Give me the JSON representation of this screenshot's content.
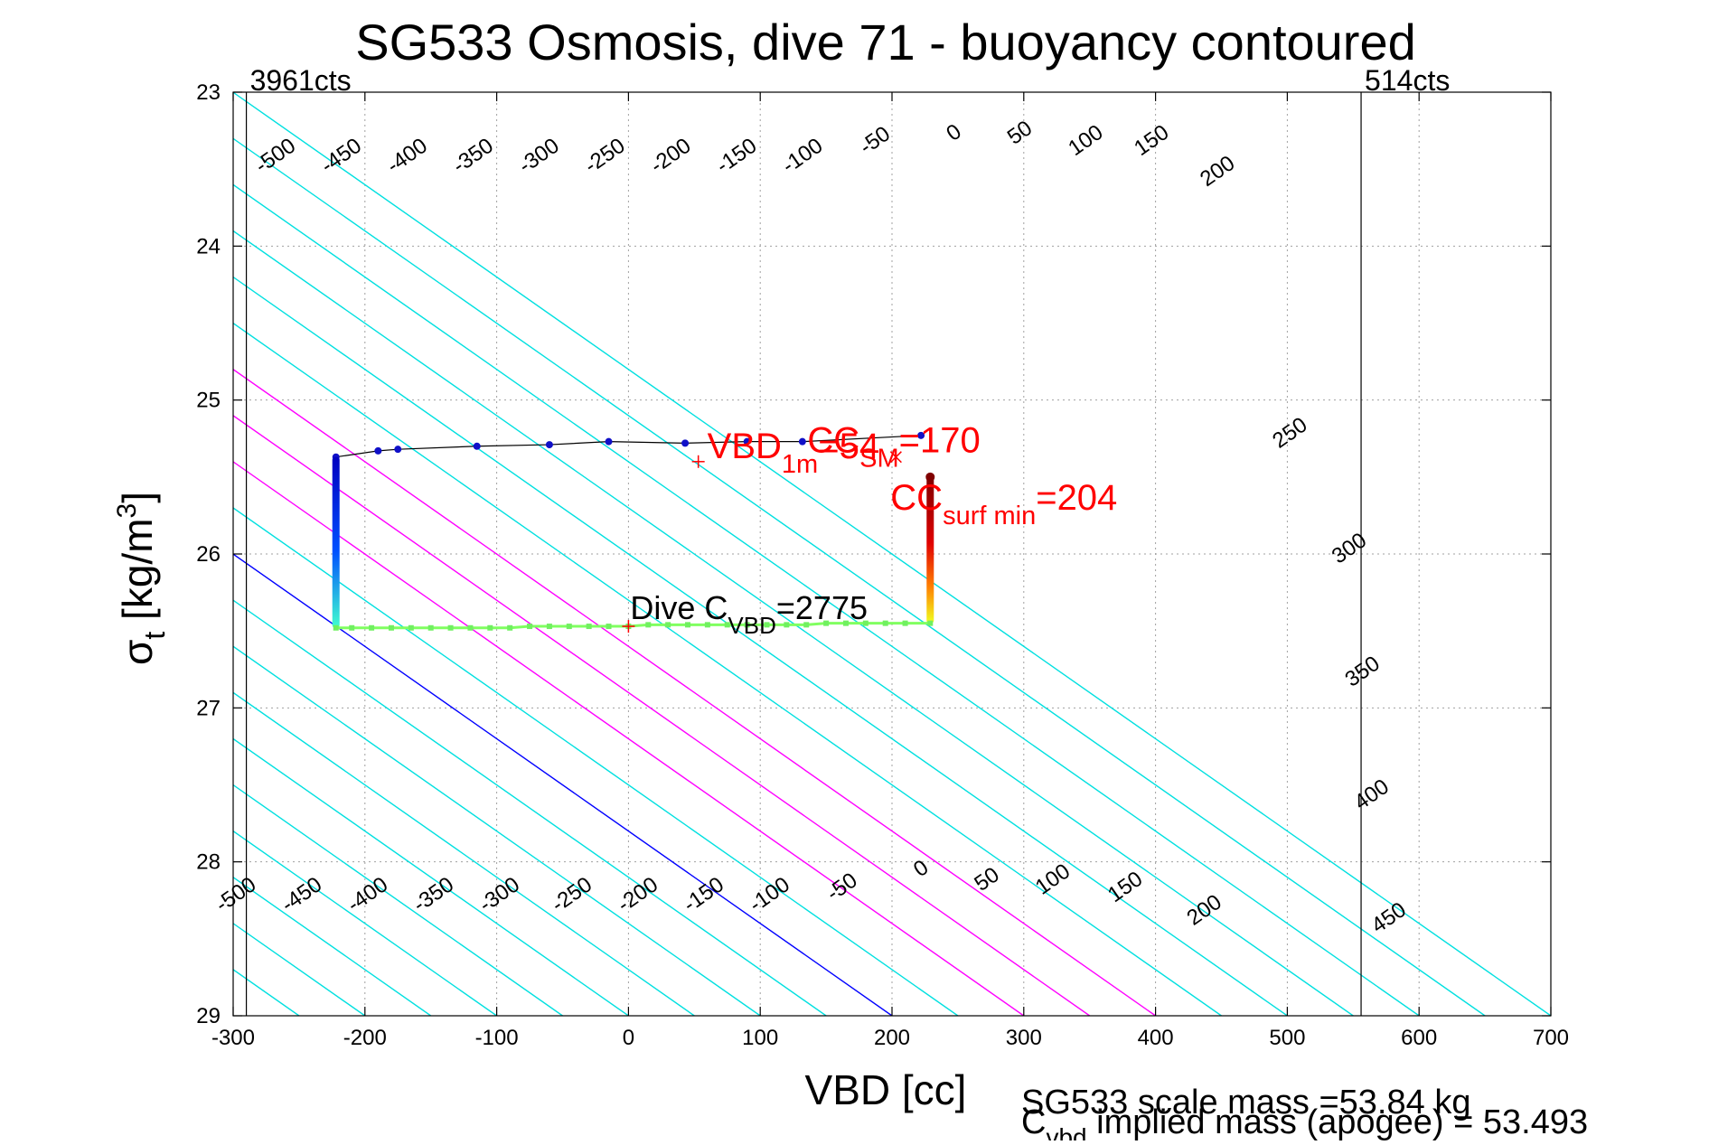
{
  "chart_data": {
    "type": "line",
    "title": "SG533 Osmosis, dive 71 - buoyancy contoured",
    "xlabel": "VBD [cc]",
    "ylabel_main": "σ",
    "ylabel_sub": "t",
    "ylabel_unit": "[kg/m",
    "ylabel_unit_sup": "3",
    "ylabel_unit_end": "]",
    "xlim": [
      -300,
      700
    ],
    "ylim": [
      23,
      29
    ],
    "y_reversed": true,
    "grid": true,
    "x_ticks": [
      -300,
      -200,
      -100,
      0,
      100,
      200,
      300,
      400,
      500,
      600,
      700
    ],
    "y_ticks": [
      23,
      24,
      25,
      26,
      27,
      28,
      29
    ],
    "x_tick_labels": [
      "-300",
      "-200",
      "-100",
      "0",
      "100",
      "200",
      "300",
      "400",
      "500",
      "600",
      "700"
    ],
    "y_tick_labels": [
      "23",
      "24",
      "25",
      "26",
      "27",
      "28",
      "29"
    ],
    "colors": {
      "contour": "#00e0e0",
      "zero_contour": "#0000ff",
      "high_contour": "#ff00ff",
      "annotation": "#ff0000",
      "grid": "#a0a0a0",
      "trace": "#000000"
    },
    "contours": {
      "slope_cc_per_sigma": 166.7,
      "levels": [
        -550,
        -500,
        -450,
        -400,
        -350,
        -300,
        -250,
        -200,
        -150,
        -100,
        -50,
        0,
        50,
        100,
        150,
        200,
        250,
        300,
        350,
        400,
        450,
        500
      ],
      "zero_levels": [
        0
      ],
      "high_levels": [
        100,
        150,
        200
      ],
      "level_labels_top": [
        {
          "text": "-500",
          "x": -265,
          "y": 23.45
        },
        {
          "text": "-450",
          "x": -215,
          "y": 23.45
        },
        {
          "text": "-400",
          "x": -165,
          "y": 23.45
        },
        {
          "text": "-350",
          "x": -115,
          "y": 23.45
        },
        {
          "text": "-300",
          "x": -65,
          "y": 23.45
        },
        {
          "text": "-250",
          "x": -15,
          "y": 23.45
        },
        {
          "text": "-200",
          "x": 35,
          "y": 23.45
        },
        {
          "text": "-150",
          "x": 85,
          "y": 23.45
        },
        {
          "text": "-100",
          "x": 135,
          "y": 23.45
        },
        {
          "text": "-50",
          "x": 190,
          "y": 23.35
        },
        {
          "text": "0",
          "x": 250,
          "y": 23.3
        },
        {
          "text": "50",
          "x": 300,
          "y": 23.3
        },
        {
          "text": "100",
          "x": 350,
          "y": 23.35
        },
        {
          "text": "150",
          "x": 400,
          "y": 23.35
        },
        {
          "text": "200",
          "x": 450,
          "y": 23.55
        },
        {
          "text": "250",
          "x": 505,
          "y": 25.25
        },
        {
          "text": "300",
          "x": 550,
          "y": 26.0
        },
        {
          "text": "350",
          "x": 560,
          "y": 26.8
        },
        {
          "text": "400",
          "x": 567,
          "y": 27.6
        },
        {
          "text": "450",
          "x": 580,
          "y": 28.4
        }
      ],
      "level_labels_bottom": [
        {
          "text": "-500",
          "x": -295,
          "y": 28.25
        },
        {
          "text": "-450",
          "x": -245,
          "y": 28.25
        },
        {
          "text": "-400",
          "x": -195,
          "y": 28.25
        },
        {
          "text": "-350",
          "x": -145,
          "y": 28.25
        },
        {
          "text": "-300",
          "x": -95,
          "y": 28.25
        },
        {
          "text": "-250",
          "x": -40,
          "y": 28.25
        },
        {
          "text": "-200",
          "x": 10,
          "y": 28.25
        },
        {
          "text": "-150",
          "x": 60,
          "y": 28.25
        },
        {
          "text": "-100",
          "x": 110,
          "y": 28.25
        },
        {
          "text": "-50",
          "x": 165,
          "y": 28.2
        },
        {
          "text": "0",
          "x": 225,
          "y": 28.08
        },
        {
          "text": "50",
          "x": 275,
          "y": 28.15
        },
        {
          "text": "100",
          "x": 325,
          "y": 28.15
        },
        {
          "text": "150",
          "x": 380,
          "y": 28.2
        },
        {
          "text": "200",
          "x": 440,
          "y": 28.35
        }
      ]
    },
    "vertical_markers": [
      {
        "label": "3961cts",
        "x": -290
      },
      {
        "label": "514cts",
        "x": 556
      }
    ],
    "series": [
      {
        "kind": "descent_path",
        "x": [
          -222,
          -190,
          -175,
          -115,
          -60,
          -15,
          43,
          90,
          132,
          222
        ],
        "y": [
          25.37,
          25.33,
          25.32,
          25.3,
          25.29,
          25.27,
          25.28,
          25.27,
          25.27,
          25.23
        ]
      },
      {
        "kind": "bottom_leg",
        "x": [
          -222,
          -210,
          -195,
          -180,
          -165,
          -150,
          -135,
          -120,
          -105,
          -90,
          -75,
          -60,
          -45,
          -30,
          -15,
          0,
          15,
          30,
          45,
          60,
          75,
          90,
          105,
          120,
          135,
          150,
          165,
          180,
          195,
          210,
          229
        ],
        "y": [
          26.48,
          26.48,
          26.48,
          26.48,
          26.48,
          26.48,
          26.48,
          26.48,
          26.48,
          26.48,
          26.47,
          26.47,
          26.47,
          26.47,
          26.47,
          26.47,
          26.46,
          26.46,
          26.46,
          26.46,
          26.46,
          26.46,
          26.46,
          26.46,
          26.46,
          26.45,
          26.45,
          26.45,
          26.45,
          26.45,
          26.45
        ]
      },
      {
        "kind": "left_column",
        "x": -222,
        "y_from": 25.37,
        "y_to": 26.48
      },
      {
        "kind": "right_column",
        "x": 229,
        "y_from": 25.5,
        "y_to": 26.45
      }
    ],
    "annotations": [
      {
        "kind": "marker_plus",
        "name": "vbd1m",
        "x": 53,
        "y": 25.4,
        "main": "VBD",
        "sub": "1m",
        "suffix": "=54"
      },
      {
        "kind": "marker_x",
        "name": "ccsm",
        "x": 203,
        "y": 25.37,
        "main": "CC",
        "sub": "SM",
        "suffix": "=170"
      },
      {
        "kind": "marker_dot",
        "name": "ccsurf",
        "x": 229,
        "y": 25.5,
        "main": "CC",
        "sub": "surf min",
        "suffix": "=204"
      },
      {
        "kind": "marker_plus_black",
        "name": "divec",
        "x": 0,
        "y": 26.47,
        "main": "Dive C",
        "sub": "VBD",
        "suffix": "=2775"
      }
    ],
    "footer": {
      "line1": "SG533 scale mass =53.84 kg",
      "line2_main": "C",
      "line2_sub": "vbd",
      "line2_rest": " implied mass (apogee) = 53.493"
    }
  }
}
